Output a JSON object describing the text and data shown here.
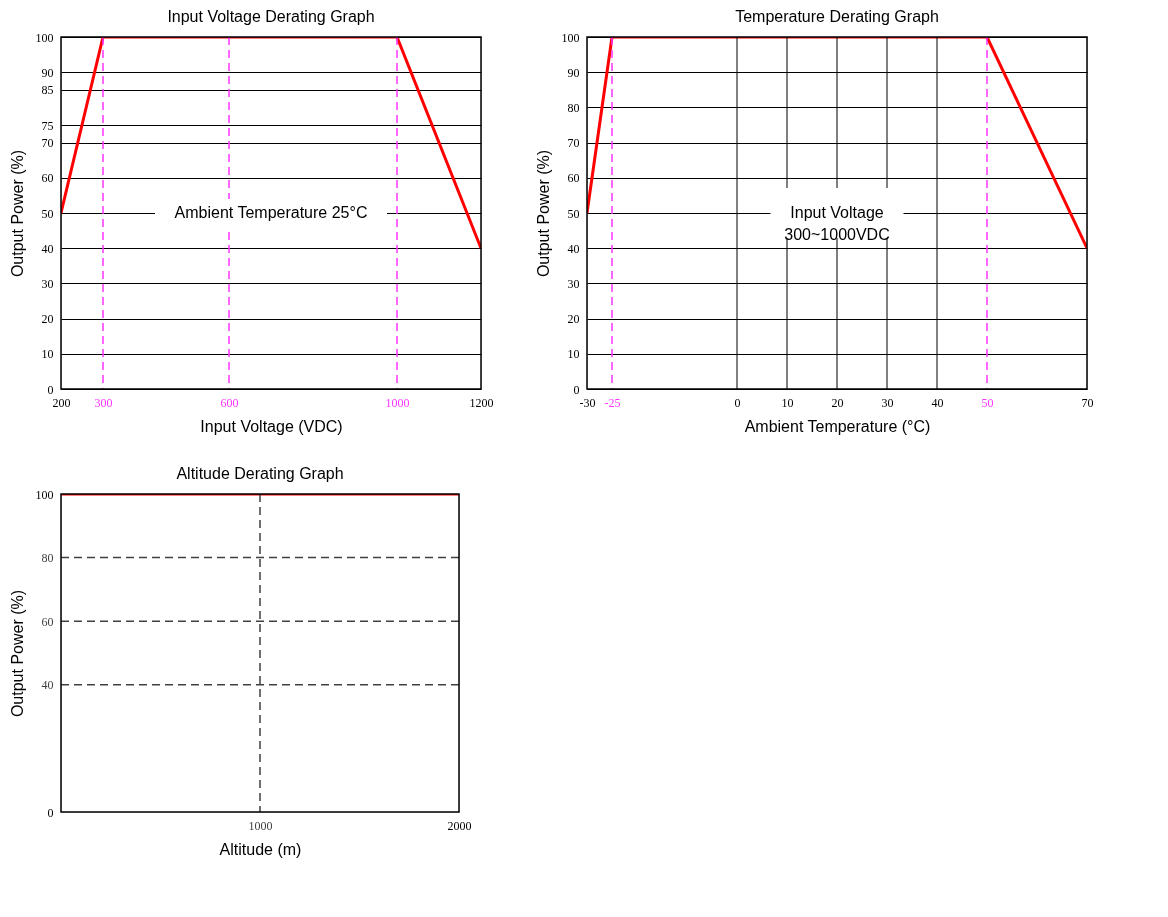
{
  "chart_data": [
    {
      "type": "line",
      "title": "Input Voltage Derating Graph",
      "xlabel": "Input Voltage (VDC)",
      "ylabel": "Output Power (%)",
      "x": [
        200,
        300,
        1000,
        1200
      ],
      "series": [
        {
          "color": "#ff0000",
          "values": [
            50,
            100,
            100,
            40
          ]
        }
      ],
      "xlim": [
        200,
        1200
      ],
      "ylim": [
        0,
        100
      ],
      "xticks": [
        200,
        300,
        600,
        1000,
        1200
      ],
      "yticks": [
        0,
        10,
        20,
        30,
        40,
        50,
        60,
        70,
        75,
        85,
        90,
        100
      ],
      "grid": "y",
      "ref_lines": [
        {
          "axis": "x",
          "value": 300,
          "color": "#ff33ff",
          "line_style": "dashed"
        },
        {
          "axis": "x",
          "value": 600,
          "color": "#ff33ff",
          "line_style": "dashed"
        },
        {
          "axis": "x",
          "value": 1000,
          "color": "#ff33ff",
          "line_style": "dashed"
        }
      ],
      "annotations": [
        "Ambient Temperature 25°C"
      ]
    },
    {
      "type": "line",
      "title": "Temperature Derating Graph",
      "xlabel": "Ambient Temperature (°C)",
      "ylabel": "Output Power (%)",
      "x": [
        -30,
        -25,
        50,
        70
      ],
      "series": [
        {
          "color": "#ff0000",
          "values": [
            50,
            100,
            100,
            40
          ]
        }
      ],
      "xlim": [
        -30,
        70
      ],
      "ylim": [
        0,
        100
      ],
      "xticks": [
        -30,
        -25,
        0,
        10,
        20,
        30,
        40,
        50,
        70
      ],
      "yticks": [
        0,
        10,
        20,
        30,
        40,
        50,
        60,
        70,
        80,
        90,
        100
      ],
      "grid": "y",
      "ref_lines": [
        {
          "axis": "x",
          "value": 0,
          "color": "#000000",
          "line_style": "solid"
        },
        {
          "axis": "x",
          "value": 10,
          "color": "#000000",
          "line_style": "solid"
        },
        {
          "axis": "x",
          "value": 20,
          "color": "#000000",
          "line_style": "solid"
        },
        {
          "axis": "x",
          "value": 30,
          "color": "#000000",
          "line_style": "solid"
        },
        {
          "axis": "x",
          "value": 40,
          "color": "#000000",
          "line_style": "solid"
        },
        {
          "axis": "x",
          "value": -25,
          "color": "#ff33ff",
          "line_style": "dashed"
        },
        {
          "axis": "x",
          "value": 50,
          "color": "#ff33ff",
          "line_style": "dashed"
        }
      ],
      "annotations": [
        "Input Voltage\n300~1000VDC"
      ]
    },
    {
      "type": "line",
      "title": "Altitude Derating Graph",
      "xlabel": "Altitude (m)",
      "ylabel": "Output Power (%)",
      "x": [
        0,
        2000
      ],
      "series": [
        {
          "color": "#ff0000",
          "values": [
            100,
            100
          ]
        }
      ],
      "xlim": [
        0,
        2000
      ],
      "ylim": [
        0,
        100
      ],
      "xticks": [
        1000,
        2000
      ],
      "yticks": [
        0,
        40,
        60,
        80,
        100
      ],
      "grid": false,
      "ref_lines": [
        {
          "axis": "y",
          "value": 40,
          "color": "#404040",
          "line_style": "dashed"
        },
        {
          "axis": "y",
          "value": 60,
          "color": "#404040",
          "line_style": "dashed"
        },
        {
          "axis": "y",
          "value": 80,
          "color": "#404040",
          "line_style": "dashed"
        },
        {
          "axis": "x",
          "value": 1000,
          "color": "#404040",
          "line_style": "dashed"
        }
      ]
    }
  ]
}
